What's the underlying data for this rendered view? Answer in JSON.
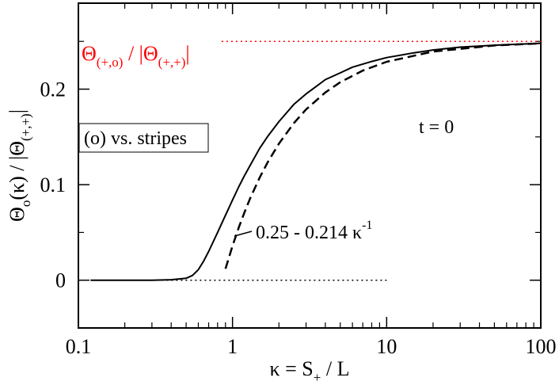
{
  "chart_data": {
    "type": "line",
    "title": "",
    "xscale": "log",
    "xlim": [
      0.1,
      100
    ],
    "ylim": [
      -0.05,
      0.29
    ],
    "grid": false,
    "x_ticks": [
      {
        "value": 0.1,
        "label": "0.1"
      },
      {
        "value": 1,
        "label": "1"
      },
      {
        "value": 10,
        "label": "10"
      },
      {
        "value": 100,
        "label": "100"
      }
    ],
    "y_ticks": [
      {
        "value": 0,
        "label": "0"
      },
      {
        "value": 0.1,
        "label": "0.1"
      },
      {
        "value": 0.2,
        "label": "0.2"
      }
    ],
    "xlabel": {
      "pre": "κ = S",
      "sub": "+",
      "post": " / L"
    },
    "ylabel": {
      "a": "Θ",
      "a_sub": "o",
      "b": "(κ) / |Θ",
      "b_sub": "(+,+)",
      "c": "|"
    },
    "series": [
      {
        "style": "solid",
        "color": "#000000",
        "x": [
          0.12,
          0.2,
          0.3,
          0.4,
          0.5,
          0.55,
          0.6,
          0.65,
          0.7,
          0.8,
          0.9,
          1.0,
          1.1,
          1.2,
          1.3,
          1.5,
          1.7,
          2.0,
          2.5,
          3.0,
          3.5,
          4.0,
          5.0,
          6.0,
          8.0,
          10.0,
          15.0,
          20.0,
          30.0,
          50.0,
          100.0
        ],
        "y": [
          0.0,
          0.0,
          0.0,
          0.0005,
          0.002,
          0.005,
          0.011,
          0.02,
          0.03,
          0.05,
          0.068,
          0.084,
          0.098,
          0.11,
          0.12,
          0.138,
          0.151,
          0.166,
          0.184,
          0.195,
          0.203,
          0.21,
          0.217,
          0.223,
          0.229,
          0.233,
          0.238,
          0.241,
          0.244,
          0.246,
          0.248
        ]
      },
      {
        "style": "dashed",
        "color": "#000000",
        "x": [
          0.9,
          1.0,
          1.1,
          1.2,
          1.3,
          1.5,
          1.7,
          2.0,
          2.5,
          3.0,
          4.0,
          5.0,
          7.0,
          10.0,
          20.0,
          50.0,
          100.0
        ],
        "y": [
          0.012,
          0.036,
          0.0555,
          0.0717,
          0.0854,
          0.1073,
          0.1241,
          0.143,
          0.1644,
          0.1787,
          0.1965,
          0.2072,
          0.2194,
          0.2286,
          0.2393,
          0.2457,
          0.2479
        ]
      },
      {
        "style": "dotted",
        "color": "#000000",
        "x": [
          0.12,
          10.0
        ],
        "y": [
          0.0,
          0.0
        ]
      },
      {
        "style": "dotted",
        "color": "#ff0000",
        "x": [
          0.85,
          100.0
        ],
        "y": [
          0.25,
          0.25
        ]
      }
    ],
    "annotations": {
      "legend_box": "(o) vs. stripes",
      "temperature": "t = 0",
      "asymptote_label": {
        "main": "0.25 - 0.214 κ",
        "sup": "-1"
      },
      "limit_label": {
        "a": "Θ",
        "a_sub": "(+,o)",
        "b": " / |Θ",
        "b_sub": "(+,+)",
        "c": "|"
      }
    }
  }
}
